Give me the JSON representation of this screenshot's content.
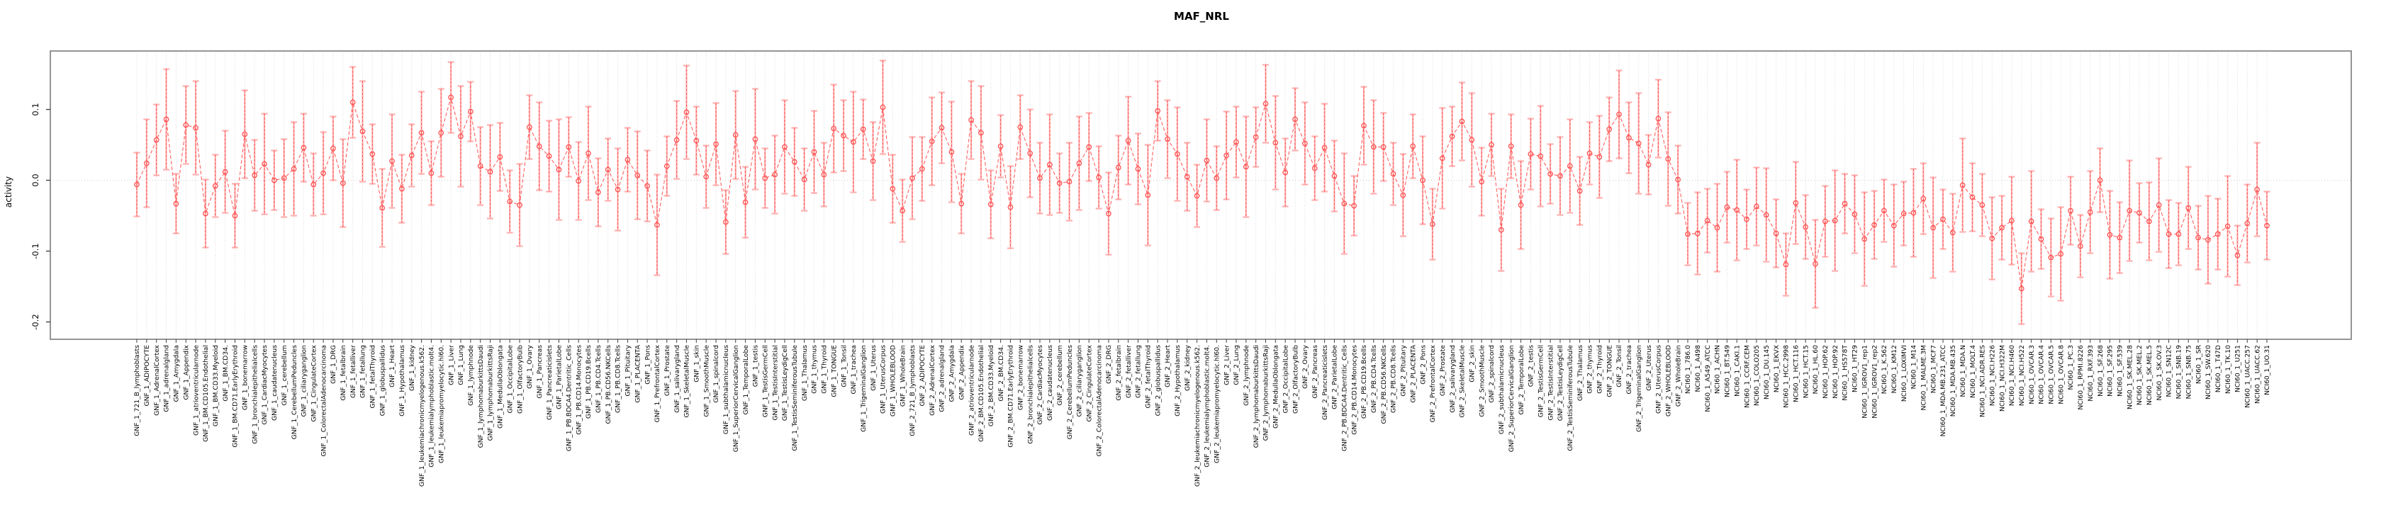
{
  "title": "MAF_NRL",
  "y_axis": {
    "label": "activity",
    "ticks": [
      "0.1",
      "0.0",
      "-0.1",
      "-0.2"
    ],
    "tick_values": [
      0.1,
      0.0,
      -0.1,
      -0.2
    ]
  },
  "colors": {
    "point": "#ff5252",
    "series_line": "#ff6060",
    "error_bar": "#ffb0b0",
    "error_bar_dash": "#ff5252",
    "gridline": "#dcdcdc",
    "zero_line": "#cfcfcf",
    "box_border": "#888888",
    "tick": "#444444",
    "label_text": "#000000"
  },
  "chart_data": {
    "type": "line",
    "title": "MAF_NRL",
    "xlabel": "",
    "ylabel": "activity",
    "ylim": [
      -0.25,
      0.17
    ],
    "grid": "vertical-dotted-per-category plus dotted zero line",
    "legend_position": "none",
    "marker": "open-circle",
    "line_style": "dashed",
    "error_bars": true,
    "category_prefixes": [
      "GNF_1_",
      "GNF_2_",
      "NCI60_1_"
    ],
    "gnf_tissues": [
      "721_B_lymphoblasts",
      "ADIPOCYTE",
      "AdrenalCortex",
      "adrenalgland",
      "Amygdala",
      "Appendix",
      "atrioventricularnode",
      "BM.CD105.Endothelial",
      "BM.CD33.Myeloid",
      "BM.CD34.",
      "BM.CD71.EarlyErythroid",
      "bonemarrow",
      "bronchialepithelialcells",
      "CardiacMyocytes",
      "caudatenucleus",
      "cerebellum",
      "CerebellumPeduncles",
      "ciliaryganglion",
      "CingulateCortex",
      "ColorectalAdenocarcinoma",
      "DRG",
      "fetalbrain",
      "fetalliver",
      "fetallung",
      "fetalThyroid",
      "globuspallidus",
      "Heart",
      "Hypothalamus",
      "kidney",
      "leukemiachronicmyelogenous.k562.",
      "leukemialymphoblastic.molt4.",
      "leukemiapromyelocytic.hl60.",
      "Liver",
      "Lung",
      "lymphnode",
      "lymphomaburkittsDaudi",
      "lymphomaburkittsRaji",
      "MedullaOblongata",
      "OccipitalLobe",
      "OlfactoryBulb",
      "Ovary",
      "Pancreas",
      "Pancreaticislets",
      "ParietalLobe",
      "PB.BDCA4.Dentritic_Cells",
      "PB.CD14.Monocytes",
      "PB.CD19.Bcells",
      "PB.CD4.Tcells",
      "PB.CD56.NKCells",
      "PB.CD8.Tcells",
      "Pituitary",
      "PLACENTA",
      "Pons",
      "PrefrontalCortex",
      "Prostate",
      "salivarygland",
      "SkeletalMuscle",
      "skin",
      "SmoothMuscle",
      "spinalcord",
      "subthalamicnucleus",
      "SuperiorCervicalGanglion",
      "TemporalLobe",
      "testis",
      "TestisGermCell",
      "TestisInterstitial",
      "TestisLeydigCell",
      "TestisSeminiferousTubule",
      "Thalamus",
      "thymus",
      "Thyroid",
      "TONGUE",
      "Tonsil",
      "trachea",
      "TrigeminalGanglion",
      "Uterus",
      "UterusCorpus",
      "WHOLEBLOOD",
      "WholeBrain"
    ],
    "nci60_lines": [
      "786.0",
      "A498",
      "A549_ATCC",
      "ACHN",
      "BT.549",
      "CAKI.1",
      "CCRF.CEM",
      "COLO205",
      "DU.145",
      "EKVX",
      "HCC.2998",
      "HCT.116",
      "HCT.15",
      "HL.60",
      "HOP.62",
      "HOP.92",
      "HS578T",
      "HT29",
      "IGROV1_rep1",
      "IGROV1_rep2",
      "K.562",
      "KM12",
      "LOXIMVI",
      "M14",
      "MALME.3M",
      "MCF7",
      "MDA.MB.231_ATCC",
      "MDA.MB.435",
      "MDA.N",
      "MOLT.4",
      "NCI.ADR.RES",
      "NCI.H226",
      "NCI.H322M",
      "NCI.H460",
      "NCI.H522",
      "OVCAR.3",
      "OVCAR.4",
      "OVCAR.5",
      "OVCAR.8",
      "PC.3",
      "RPMI.8226",
      "RXF.393",
      "SF.268",
      "SF.295",
      "SF.539",
      "SK.MEL.28",
      "SK.MEL.2",
      "SK.MEL.5",
      "SK.OV.3",
      "SN12C",
      "SNB.19",
      "SNB.75",
      "SR",
      "SW.620",
      "T47D",
      "TK.10",
      "U251",
      "UACC.257",
      "UACC.62",
      "UO.31"
    ],
    "values": [
      -0.006,
      0.024,
      0.057,
      0.086,
      -0.033,
      0.078,
      0.074,
      -0.047,
      -0.008,
      0.012,
      -0.05,
      0.065,
      0.007,
      0.023,
      0.0,
      0.003,
      0.016,
      0.046,
      -0.006,
      0.01,
      0.045,
      -0.004,
      0.11,
      0.069,
      0.037,
      -0.039,
      0.027,
      -0.012,
      0.035,
      0.067,
      0.01,
      0.067,
      0.117,
      0.062,
      0.097,
      0.02,
      0.012,
      0.033,
      -0.03,
      -0.035,
      0.075,
      0.048,
      0.034,
      0.015,
      0.047,
      -0.001,
      0.038,
      -0.017,
      0.015,
      -0.013,
      0.029,
      0.007,
      -0.008,
      -0.063,
      0.02,
      0.057,
      0.096,
      0.056,
      0.005,
      0.051,
      -0.059,
      0.064,
      -0.031,
      0.058,
      0.003,
      0.008,
      0.047,
      0.026,
      0.001,
      0.04,
      0.008,
      0.073,
      0.063,
      0.054,
      0.072,
      0.027,
      0.103,
      -0.012,
      -0.043,
      0.003,
      0.016,
      0.055,
      0.074,
      0.04,
      -0.033,
      0.085,
      0.067,
      -0.034,
      0.048,
      -0.038,
      0.075,
      0.038,
      0.003,
      0.022,
      -0.004,
      -0.002,
      0.024,
      0.047,
      0.004,
      -0.047,
      0.018,
      0.056,
      0.016,
      -0.021,
      0.098,
      0.058,
      0.037,
      0.005,
      -0.022,
      0.028,
      0.003,
      0.035,
      0.054,
      0.019,
      0.061,
      0.108,
      0.053,
      0.011,
      0.086,
      0.052,
      0.017,
      0.046,
      0.006,
      -0.033,
      -0.036,
      0.077,
      0.047,
      0.047,
      0.009,
      -0.021,
      0.048,
      0.0,
      -0.062,
      0.031,
      0.062,
      0.083,
      0.057,
      -0.002,
      0.05,
      -0.07,
      0.048,
      -0.035,
      0.037,
      0.034,
      0.009,
      0.006,
      0.02,
      -0.015,
      0.038,
      0.033,
      0.072,
      0.093,
      0.06,
      0.052,
      0.022,
      0.087,
      0.03,
      0.001,
      -0.076,
      -0.075,
      -0.057,
      -0.067,
      -0.038,
      -0.042,
      -0.055,
      -0.037,
      -0.049,
      -0.075,
      -0.119,
      -0.032,
      -0.066,
      -0.118,
      -0.058,
      -0.057,
      -0.033,
      -0.048,
      -0.083,
      -0.063,
      -0.043,
      -0.064,
      -0.047,
      -0.046,
      -0.026,
      -0.067,
      -0.055,
      -0.074,
      -0.007,
      -0.024,
      -0.035,
      -0.082,
      -0.067,
      -0.057,
      -0.153,
      -0.058,
      -0.083,
      -0.109,
      -0.104,
      -0.043,
      -0.093,
      -0.045,
      0.0,
      -0.077,
      -0.081,
      -0.043,
      -0.046,
      -0.058,
      -0.035,
      -0.076,
      -0.076,
      -0.039,
      -0.081,
      -0.084,
      -0.076,
      -0.065,
      -0.106,
      -0.061,
      -0.013,
      -0.064
    ],
    "errors": [
      0.045,
      0.062,
      0.05,
      0.071,
      0.042,
      0.055,
      0.066,
      0.048,
      0.044,
      0.058,
      0.045,
      0.062,
      0.05,
      0.071,
      0.042,
      0.055,
      0.066,
      0.048,
      0.044,
      0.058,
      0.045,
      0.062,
      0.05,
      0.071,
      0.042,
      0.055,
      0.066,
      0.048,
      0.044,
      0.058,
      0.045,
      0.062,
      0.05,
      0.071,
      0.042,
      0.055,
      0.066,
      0.048,
      0.044,
      0.058,
      0.045,
      0.062,
      0.05,
      0.071,
      0.042,
      0.055,
      0.066,
      0.048,
      0.044,
      0.058,
      0.045,
      0.062,
      0.05,
      0.071,
      0.042,
      0.055,
      0.066,
      0.048,
      0.044,
      0.058,
      0.045,
      0.062,
      0.05,
      0.071,
      0.042,
      0.055,
      0.066,
      0.048,
      0.044,
      0.058,
      0.045,
      0.062,
      0.05,
      0.071,
      0.042,
      0.055,
      0.066,
      0.048,
      0.044,
      0.058,
      0.045,
      0.062,
      0.05,
      0.071,
      0.042,
      0.055,
      0.066,
      0.048,
      0.044,
      0.058,
      0.045,
      0.062,
      0.05,
      0.071,
      0.042,
      0.055,
      0.066,
      0.048,
      0.044,
      0.058,
      0.045,
      0.062,
      0.05,
      0.071,
      0.042,
      0.055,
      0.066,
      0.048,
      0.044,
      0.058,
      0.045,
      0.062,
      0.05,
      0.071,
      0.042,
      0.055,
      0.066,
      0.048,
      0.044,
      0.058,
      0.045,
      0.062,
      0.05,
      0.071,
      0.042,
      0.055,
      0.066,
      0.048,
      0.044,
      0.058,
      0.045,
      0.062,
      0.05,
      0.071,
      0.042,
      0.055,
      0.066,
      0.048,
      0.044,
      0.058,
      0.045,
      0.062,
      0.05,
      0.071,
      0.042,
      0.055,
      0.066,
      0.048,
      0.044,
      0.058,
      0.045,
      0.062,
      0.05,
      0.071,
      0.042,
      0.055,
      0.066,
      0.048,
      0.044,
      0.058,
      0.045,
      0.062,
      0.05,
      0.071,
      0.042,
      0.055,
      0.066,
      0.048,
      0.044,
      0.058,
      0.045,
      0.062,
      0.05,
      0.071,
      0.042,
      0.055,
      0.066,
      0.048,
      0.044,
      0.058,
      0.045,
      0.062,
      0.05,
      0.071,
      0.042,
      0.055,
      0.066,
      0.048,
      0.044,
      0.058,
      0.045,
      0.062,
      0.05,
      0.071,
      0.042,
      0.055,
      0.066,
      0.048,
      0.044,
      0.058,
      0.045,
      0.062,
      0.05,
      0.071,
      0.042,
      0.055,
      0.066,
      0.048,
      0.044,
      0.058,
      0.045,
      0.062,
      0.05,
      0.071,
      0.042,
      0.055,
      0.066,
      0.048
    ]
  }
}
